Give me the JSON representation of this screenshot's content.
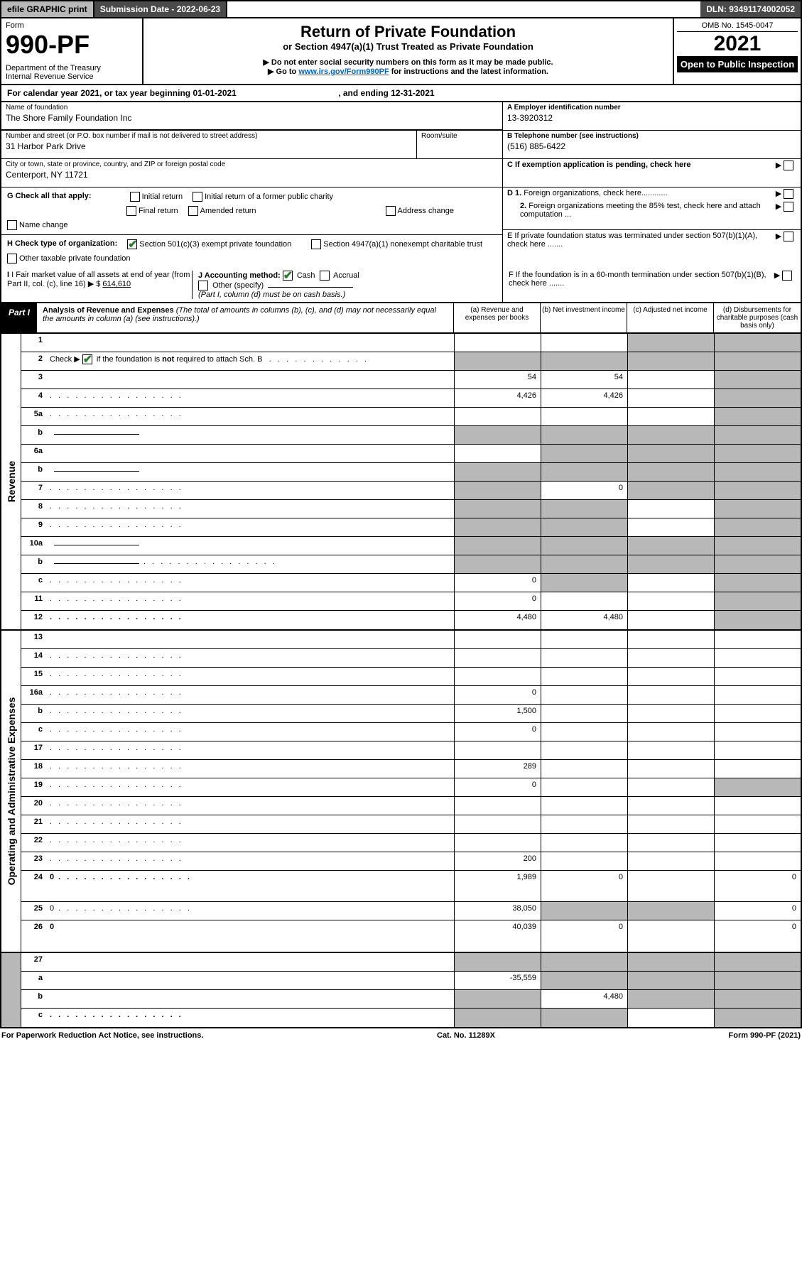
{
  "topbar": {
    "efile": "efile GRAPHIC print",
    "submission": "Submission Date - 2022-06-23",
    "dln": "DLN: 93491174002052"
  },
  "header": {
    "form_label": "Form",
    "form_no": "990-PF",
    "dept": "Department of the Treasury",
    "irs": "Internal Revenue Service",
    "title": "Return of Private Foundation",
    "subtitle": "or Section 4947(a)(1) Trust Treated as Private Foundation",
    "note1": "▶ Do not enter social security numbers on this form as it may be made public.",
    "note2_pre": "▶ Go to ",
    "note2_link": "www.irs.gov/Form990PF",
    "note2_post": " for instructions and the latest information.",
    "omb": "OMB No. 1545-0047",
    "year": "2021",
    "open": "Open to Public Inspection"
  },
  "period": {
    "text_pre": "For calendar year 2021, or tax year beginning ",
    "begin": "01-01-2021",
    "text_mid": " , and ending ",
    "end": "12-31-2021"
  },
  "info": {
    "name_label": "Name of foundation",
    "name": "The Shore Family Foundation Inc",
    "addr_label": "Number and street (or P.O. box number if mail is not delivered to street address)",
    "addr": "31 Harbor Park Drive",
    "room_label": "Room/suite",
    "room": "",
    "city_label": "City or town, state or province, country, and ZIP or foreign postal code",
    "city": "Centerport, NY  11721",
    "A_label": "A Employer identification number",
    "A": "13-3920312",
    "B_label": "B Telephone number (see instructions)",
    "B": "(516) 885-6422",
    "C_label": "C If exemption application is pending, check here"
  },
  "G": {
    "lead": "G Check all that apply:",
    "opts": [
      "Initial return",
      "Initial return of a former public charity",
      "Final return",
      "Amended return",
      "Address change",
      "Name change"
    ]
  },
  "D": {
    "d1": "D 1. Foreign organizations, check here............",
    "d2": "2. Foreign organizations meeting the 85% test, check here and attach computation ..."
  },
  "H": {
    "lead": "H Check type of organization:",
    "o1": "Section 501(c)(3) exempt private foundation",
    "o2": "Section 4947(a)(1) nonexempt charitable trust",
    "o3": "Other taxable private foundation"
  },
  "E": "E If private foundation status was terminated under section 507(b)(1)(A), check here .......",
  "I": {
    "lead": "I Fair market value of all assets at end of year (from Part II, col. (c), line 16)",
    "val": "614,610"
  },
  "J": {
    "lead": "J Accounting method:",
    "cash": "Cash",
    "accrual": "Accrual",
    "other": "Other (specify)",
    "note": "(Part I, column (d) must be on cash basis.)"
  },
  "F": "F If the foundation is in a 60-month termination under section 507(b)(1)(B), check here .......",
  "part1": {
    "tab": "Part I",
    "title": "Analysis of Revenue and Expenses",
    "note": " (The total of amounts in columns (b), (c), and (d) may not necessarily equal the amounts in column (a) (see instructions).)",
    "col_a": "(a) Revenue and expenses per books",
    "col_b": "(b) Net investment income",
    "col_c": "(c) Adjusted net income",
    "col_d": "(d) Disbursements for charitable purposes (cash basis only)"
  },
  "side": {
    "rev": "Revenue",
    "exp": "Operating and Administrative Expenses"
  },
  "rows_rev": [
    {
      "n": "1",
      "d": "",
      "a": "",
      "b": "",
      "c": "",
      "shade_c": true,
      "shade_d": true
    },
    {
      "n": "2",
      "d": "",
      "a": "",
      "b": "",
      "c": "",
      "shade_all": true,
      "bold": false
    },
    {
      "n": "3",
      "d": "",
      "a": "54",
      "b": "54",
      "c": "",
      "shade_d": true
    },
    {
      "n": "4",
      "d": "",
      "a": "4,426",
      "b": "4,426",
      "c": "",
      "shade_d": true,
      "dots": true
    },
    {
      "n": "5a",
      "d": "",
      "a": "",
      "b": "",
      "c": "",
      "shade_d": true,
      "dots": true
    },
    {
      "n": "b",
      "d": "",
      "a": "",
      "b": "",
      "c": "",
      "shade_all_after": true,
      "inline": true
    },
    {
      "n": "6a",
      "d": "",
      "a": "",
      "b": "",
      "c": "",
      "shade_bcd": true
    },
    {
      "n": "b",
      "d": "",
      "a": "",
      "b": "",
      "c": "",
      "shade_all_after": true,
      "inline": true
    },
    {
      "n": "7",
      "d": "",
      "a": "",
      "b": "0",
      "c": "",
      "shade_a": true,
      "shade_cd": true,
      "dots": true
    },
    {
      "n": "8",
      "d": "",
      "a": "",
      "b": "",
      "c": "",
      "shade_ab": true,
      "shade_d": true,
      "dots": true
    },
    {
      "n": "9",
      "d": "",
      "a": "",
      "b": "",
      "c": "",
      "shade_ab": true,
      "shade_d": true,
      "dots": true
    },
    {
      "n": "10a",
      "d": "",
      "a": "",
      "b": "",
      "c": "",
      "shade_all_after": true,
      "inline": true
    },
    {
      "n": "b",
      "d": "",
      "a": "",
      "b": "",
      "c": "",
      "shade_all_after": true,
      "inline": true,
      "dots": true
    },
    {
      "n": "c",
      "d": "",
      "a": "0",
      "b": "",
      "c": "",
      "shade_b": true,
      "shade_d": true,
      "dots": true
    },
    {
      "n": "11",
      "d": "",
      "a": "0",
      "b": "",
      "c": "",
      "shade_d": true,
      "dots": true
    },
    {
      "n": "12",
      "d": "",
      "a": "4,480",
      "b": "4,480",
      "c": "",
      "shade_d": true,
      "bold": true,
      "dots": true
    }
  ],
  "rows_exp": [
    {
      "n": "13",
      "d": "",
      "a": "",
      "b": "",
      "c": ""
    },
    {
      "n": "14",
      "d": "",
      "a": "",
      "b": "",
      "c": "",
      "dots": true
    },
    {
      "n": "15",
      "d": "",
      "a": "",
      "b": "",
      "c": "",
      "dots": true
    },
    {
      "n": "16a",
      "d": "",
      "a": "0",
      "b": "",
      "c": "",
      "dots": true
    },
    {
      "n": "b",
      "d": "",
      "a": "1,500",
      "b": "",
      "c": "",
      "dots": true
    },
    {
      "n": "c",
      "d": "",
      "a": "0",
      "b": "",
      "c": "",
      "dots": true
    },
    {
      "n": "17",
      "d": "",
      "a": "",
      "b": "",
      "c": "",
      "dots": true
    },
    {
      "n": "18",
      "d": "",
      "a": "289",
      "b": "",
      "c": "",
      "dots": true
    },
    {
      "n": "19",
      "d": "",
      "a": "0",
      "b": "",
      "c": "",
      "shade_d": true,
      "dots": true
    },
    {
      "n": "20",
      "d": "",
      "a": "",
      "b": "",
      "c": "",
      "dots": true
    },
    {
      "n": "21",
      "d": "",
      "a": "",
      "b": "",
      "c": "",
      "dots": true
    },
    {
      "n": "22",
      "d": "",
      "a": "",
      "b": "",
      "c": "",
      "dots": true
    },
    {
      "n": "23",
      "d": "",
      "a": "200",
      "b": "",
      "c": "",
      "dots": true
    },
    {
      "n": "24",
      "d": "0",
      "a": "1,989",
      "b": "0",
      "c": "",
      "bold": true,
      "dots": true,
      "tall": true
    },
    {
      "n": "25",
      "d": "0",
      "a": "38,050",
      "b": "",
      "c": "",
      "shade_bc": true,
      "dots": true
    },
    {
      "n": "26",
      "d": "0",
      "a": "40,039",
      "b": "0",
      "c": "",
      "bold": true,
      "tall": true
    }
  ],
  "rows_bottom": [
    {
      "n": "27",
      "d": "",
      "a": "",
      "b": "",
      "c": "",
      "shade_all": true
    },
    {
      "n": "a",
      "d": "",
      "a": "-35,559",
      "b": "",
      "c": "",
      "shade_bcd": true,
      "bold": true
    },
    {
      "n": "b",
      "d": "",
      "a": "",
      "b": "4,480",
      "c": "",
      "shade_a": true,
      "shade_cd": true,
      "bold": true
    },
    {
      "n": "c",
      "d": "",
      "a": "",
      "b": "",
      "c": "",
      "shade_ab": true,
      "shade_d": true,
      "bold": true,
      "dots": true
    }
  ],
  "footer": {
    "left": "For Paperwork Reduction Act Notice, see instructions.",
    "mid": "Cat. No. 11289X",
    "right": "Form 990-PF (2021)"
  },
  "colors": {
    "shade": "#b8b8b8",
    "darkbar": "#4a4a4a",
    "link": "#0066cc",
    "check": "#2a7a2a"
  }
}
